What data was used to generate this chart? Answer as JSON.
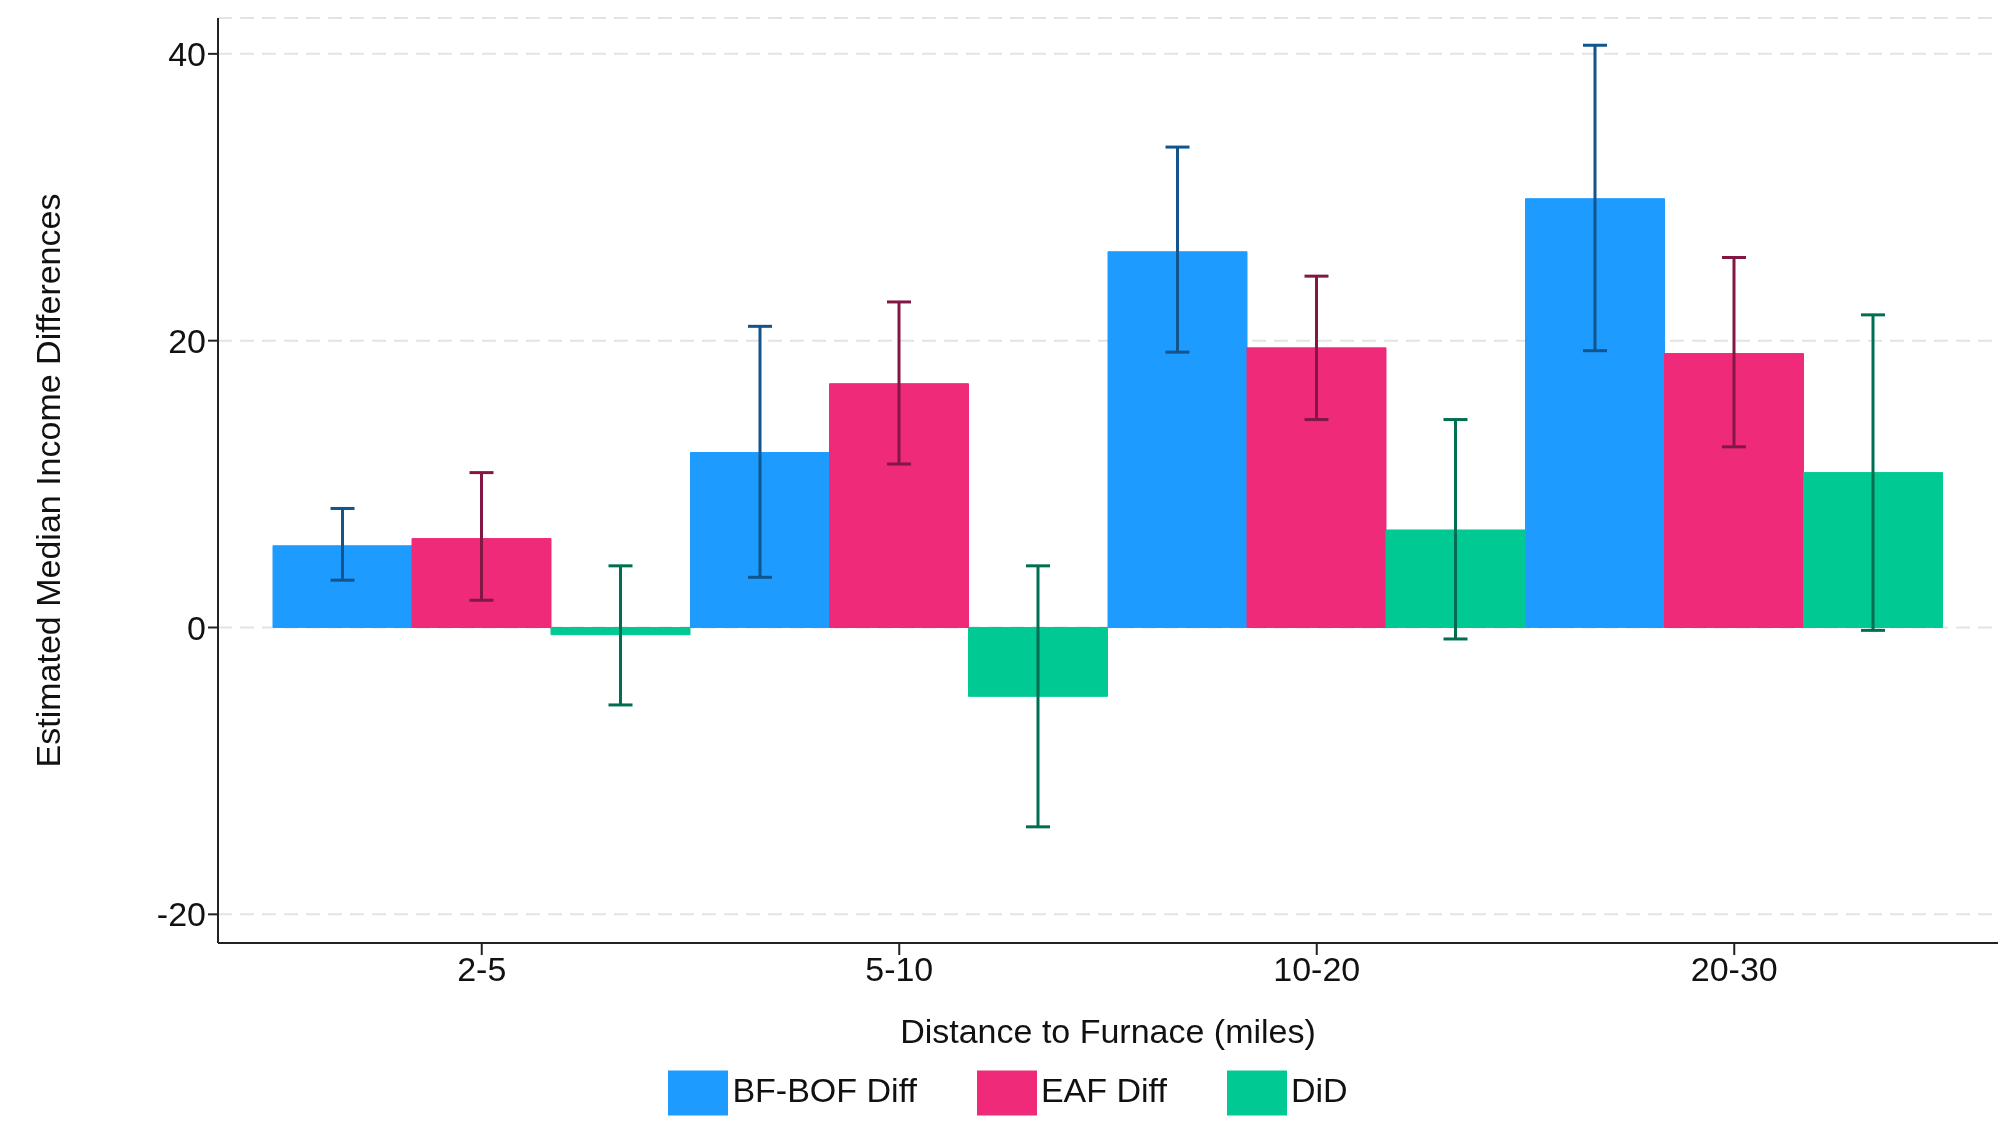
{
  "chart_data": {
    "type": "bar",
    "xlabel": "Distance to Furnace (miles)",
    "ylabel": "Estimated Median Income Differences",
    "categories": [
      "2-5",
      "5-10",
      "10-20",
      "20-30"
    ],
    "series": [
      {
        "name": "BF-BOF Diff",
        "color": "#1e9bff",
        "values": [
          5.7,
          12.2,
          26.2,
          29.9
        ],
        "errors": [
          [
            3.3,
            8.3
          ],
          [
            3.5,
            21.0
          ],
          [
            19.2,
            33.5
          ],
          [
            19.3,
            40.6
          ]
        ]
      },
      {
        "name": "EAF Diff",
        "color": "#ef2a79",
        "values": [
          6.2,
          17.0,
          19.5,
          19.1
        ],
        "errors": [
          [
            1.9,
            10.8
          ],
          [
            11.4,
            22.7
          ],
          [
            14.5,
            24.5
          ],
          [
            12.6,
            25.8
          ]
        ]
      },
      {
        "name": "DiD",
        "color": "#00c994",
        "values": [
          -0.5,
          -4.8,
          6.8,
          10.8
        ],
        "errors": [
          [
            -5.4,
            4.3
          ],
          [
            -13.9,
            4.3
          ],
          [
            -0.8,
            14.5
          ],
          [
            -0.2,
            21.8
          ]
        ]
      }
    ],
    "ylim": [
      -22,
      42.5
    ],
    "yticks": [
      -20,
      0,
      20,
      40
    ],
    "grid": "y",
    "legend": "bottom"
  }
}
